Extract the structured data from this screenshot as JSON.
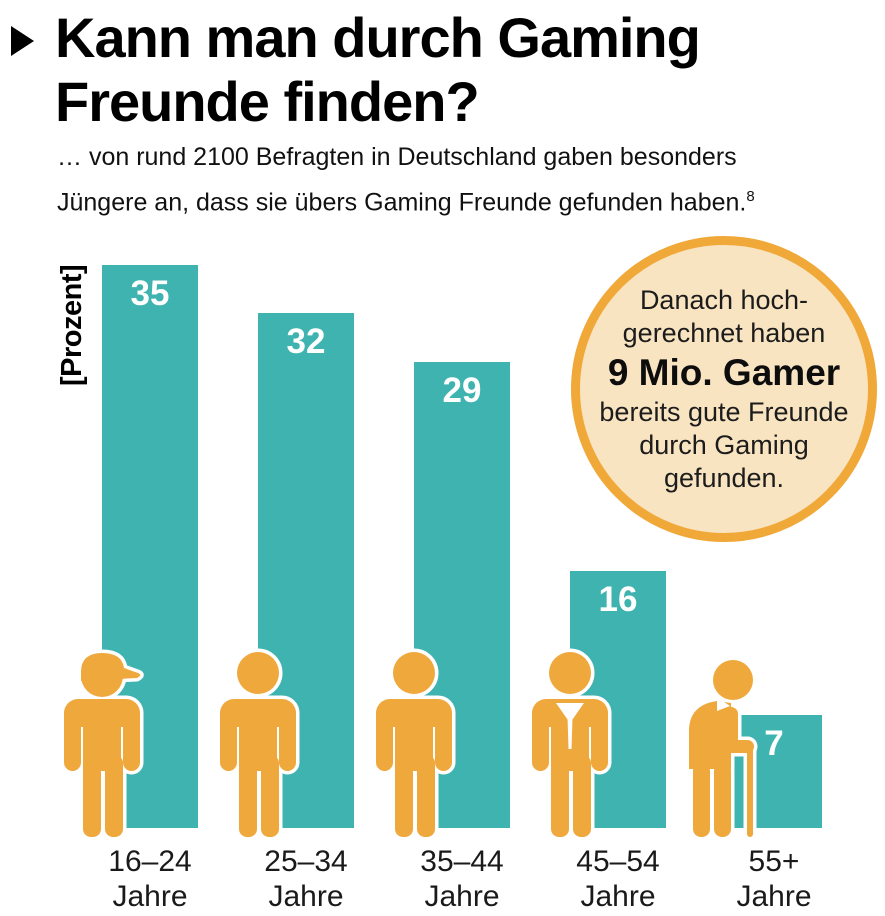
{
  "header": {
    "title_line1": "Kann man durch Gaming",
    "title_line2": "Freunde finden?",
    "subtitle_line1": "… von rund 2100 Befragten in Deutschland gaben besonders",
    "subtitle_line2": "Jüngere an, dass sie übers Gaming Freunde gefunden haben.",
    "footnote_marker": "8"
  },
  "chart_data": {
    "type": "bar",
    "title": "Kann man durch Gaming Freunde finden?",
    "ylabel": "[Prozent]",
    "categories": [
      "16–24 Jahre",
      "25–34 Jahre",
      "35–44 Jahre",
      "45–54 Jahre",
      "55+ Jahre"
    ],
    "values": [
      35,
      32,
      29,
      16,
      7
    ],
    "ylim": [
      0,
      36
    ],
    "grid": false,
    "legend": false,
    "bar_color": "#3EB3AF",
    "value_label_color": "#FFFFFF",
    "pictogram_color": "#EFA83C",
    "pictograms": [
      "young-person-with-cap",
      "adult-person",
      "adult-person",
      "businessperson-with-tie",
      "elderly-person-with-cane"
    ]
  },
  "badge": {
    "lines_before": [
      "Danach hoch-",
      "gerechnet haben"
    ],
    "highlight": "9 Mio. Gamer",
    "lines_after": [
      "bereits gute Freunde",
      "durch Gaming",
      "gefunden."
    ],
    "fill_color": "#F9E4C1",
    "border_color": "#F0A838"
  }
}
